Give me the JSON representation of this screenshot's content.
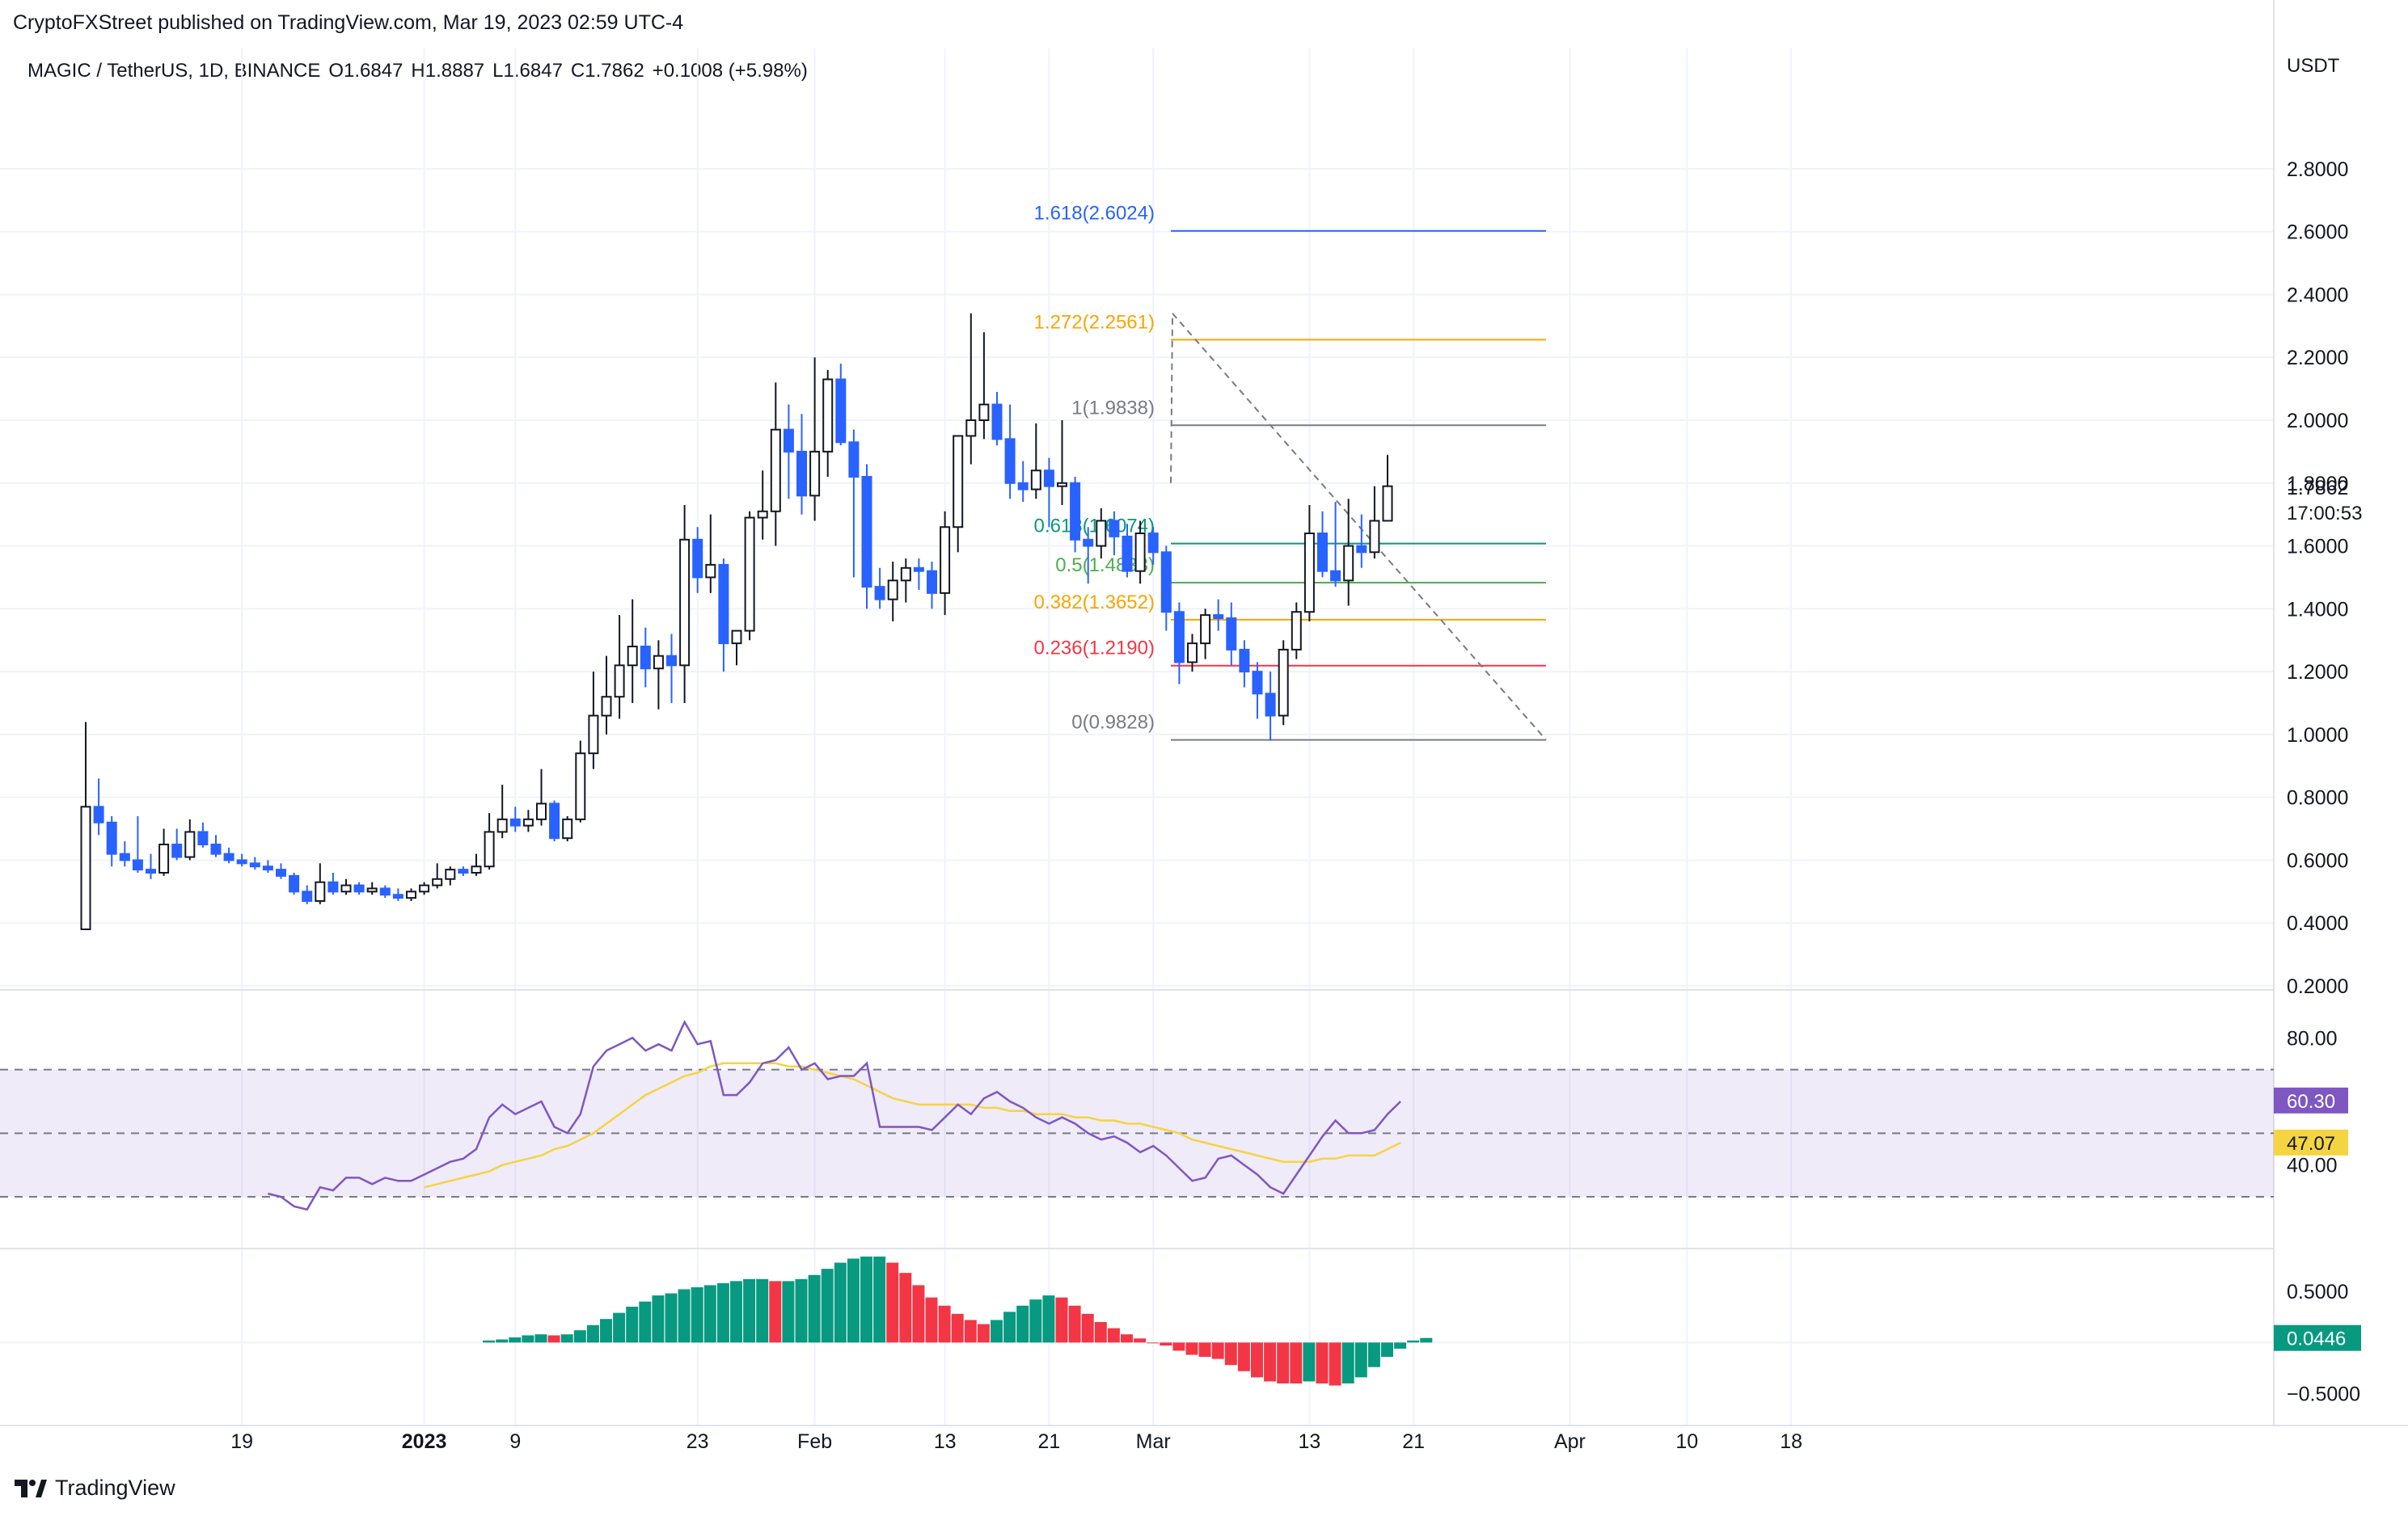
{
  "header": {
    "attribution": "CryptoFXStreet published on TradingView.com, Mar 19, 2023 02:59 UTC-4",
    "symbol": "MAGIC / TetherUS, 1D, BINANCE",
    "open": "O1.6847",
    "high": "H1.8887",
    "low": "L1.6847",
    "close": "C1.7862",
    "change": "+0.1008 (+5.98%)"
  },
  "footer": {
    "brand": "TradingView",
    "logo_icon": "tradingview-logo-icon"
  },
  "colors": {
    "up": "#ffffff",
    "down": "#2962ff",
    "wick": "#131722",
    "rsi": "#7e57c2",
    "rsi_ma": "#f5d442",
    "hist_up": "#089981",
    "hist_down": "#f23645",
    "grid": "#f0f3fa"
  },
  "chart_data": [
    {
      "type": "candlestick",
      "currency": "USDT",
      "ylim": [
        0.2,
        2.9
      ],
      "y_ticks": [
        "2.8000",
        "2.6000",
        "2.4000",
        "2.2000",
        "2.0000",
        "1.8000",
        "1.6000",
        "1.4000",
        "1.2000",
        "1.0000",
        "0.8000",
        "0.6000",
        "0.4000",
        "0.2000"
      ],
      "x_ticks": [
        "19",
        "2023",
        "9",
        "23",
        "Feb",
        "13",
        "21",
        "Mar",
        "13",
        "21",
        "Apr",
        "10",
        "18"
      ],
      "last_price": "1.7862",
      "countdown": "17:00:53",
      "candles": [
        [
          0.38,
          1.04,
          0.38,
          0.77
        ],
        [
          0.77,
          0.86,
          0.68,
          0.72
        ],
        [
          0.72,
          0.74,
          0.58,
          0.62
        ],
        [
          0.62,
          0.66,
          0.58,
          0.6
        ],
        [
          0.6,
          0.74,
          0.56,
          0.57
        ],
        [
          0.57,
          0.62,
          0.54,
          0.56
        ],
        [
          0.56,
          0.7,
          0.55,
          0.65
        ],
        [
          0.65,
          0.7,
          0.6,
          0.61
        ],
        [
          0.61,
          0.73,
          0.6,
          0.69
        ],
        [
          0.69,
          0.72,
          0.64,
          0.65
        ],
        [
          0.65,
          0.68,
          0.61,
          0.62
        ],
        [
          0.62,
          0.64,
          0.59,
          0.6
        ],
        [
          0.6,
          0.62,
          0.58,
          0.59
        ],
        [
          0.59,
          0.61,
          0.57,
          0.58
        ],
        [
          0.58,
          0.6,
          0.56,
          0.57
        ],
        [
          0.57,
          0.59,
          0.54,
          0.55
        ],
        [
          0.55,
          0.56,
          0.49,
          0.5
        ],
        [
          0.5,
          0.52,
          0.46,
          0.47
        ],
        [
          0.47,
          0.59,
          0.46,
          0.53
        ],
        [
          0.53,
          0.56,
          0.49,
          0.5
        ],
        [
          0.5,
          0.54,
          0.49,
          0.52
        ],
        [
          0.52,
          0.53,
          0.49,
          0.5
        ],
        [
          0.5,
          0.53,
          0.49,
          0.51
        ],
        [
          0.51,
          0.52,
          0.48,
          0.49
        ],
        [
          0.49,
          0.51,
          0.47,
          0.48
        ],
        [
          0.48,
          0.51,
          0.47,
          0.5
        ],
        [
          0.5,
          0.53,
          0.49,
          0.52
        ],
        [
          0.52,
          0.59,
          0.51,
          0.54
        ],
        [
          0.54,
          0.58,
          0.52,
          0.57
        ],
        [
          0.57,
          0.58,
          0.55,
          0.56
        ],
        [
          0.56,
          0.62,
          0.55,
          0.58
        ],
        [
          0.58,
          0.75,
          0.57,
          0.69
        ],
        [
          0.69,
          0.84,
          0.67,
          0.73
        ],
        [
          0.73,
          0.77,
          0.69,
          0.71
        ],
        [
          0.71,
          0.76,
          0.69,
          0.73
        ],
        [
          0.73,
          0.89,
          0.71,
          0.78
        ],
        [
          0.78,
          0.79,
          0.66,
          0.67
        ],
        [
          0.67,
          0.74,
          0.66,
          0.73
        ],
        [
          0.73,
          0.98,
          0.72,
          0.94
        ],
        [
          0.94,
          1.2,
          0.89,
          1.06
        ],
        [
          1.06,
          1.25,
          1.0,
          1.12
        ],
        [
          1.12,
          1.38,
          1.05,
          1.22
        ],
        [
          1.22,
          1.43,
          1.1,
          1.28
        ],
        [
          1.28,
          1.34,
          1.15,
          1.21
        ],
        [
          1.21,
          1.3,
          1.08,
          1.25
        ],
        [
          1.25,
          1.32,
          1.1,
          1.22
        ],
        [
          1.22,
          1.73,
          1.1,
          1.62
        ],
        [
          1.62,
          1.66,
          1.45,
          1.5
        ],
        [
          1.5,
          1.7,
          1.45,
          1.54
        ],
        [
          1.54,
          1.56,
          1.2,
          1.29
        ],
        [
          1.29,
          1.32,
          1.22,
          1.33
        ],
        [
          1.33,
          1.71,
          1.3,
          1.69
        ],
        [
          1.69,
          1.84,
          1.62,
          1.71
        ],
        [
          1.71,
          2.12,
          1.6,
          1.97
        ],
        [
          1.97,
          2.05,
          1.75,
          1.9
        ],
        [
          1.9,
          2.02,
          1.7,
          1.76
        ],
        [
          1.76,
          2.2,
          1.68,
          1.9
        ],
        [
          1.9,
          2.16,
          1.82,
          2.13
        ],
        [
          2.13,
          2.18,
          1.92,
          1.93
        ],
        [
          1.93,
          1.97,
          1.5,
          1.82
        ],
        [
          1.82,
          1.86,
          1.4,
          1.47
        ],
        [
          1.47,
          1.53,
          1.4,
          1.43
        ],
        [
          1.43,
          1.55,
          1.36,
          1.49
        ],
        [
          1.49,
          1.56,
          1.42,
          1.53
        ],
        [
          1.53,
          1.56,
          1.46,
          1.52
        ],
        [
          1.52,
          1.55,
          1.4,
          1.45
        ],
        [
          1.45,
          1.71,
          1.38,
          1.66
        ],
        [
          1.66,
          1.95,
          1.58,
          1.95
        ],
        [
          1.95,
          2.34,
          1.86,
          2.0
        ],
        [
          2.0,
          2.28,
          1.94,
          2.05
        ],
        [
          2.05,
          2.09,
          1.92,
          1.94
        ],
        [
          1.94,
          2.05,
          1.75,
          1.8
        ],
        [
          1.8,
          1.87,
          1.74,
          1.78
        ],
        [
          1.78,
          1.99,
          1.75,
          1.84
        ],
        [
          1.84,
          1.88,
          1.66,
          1.79
        ],
        [
          1.79,
          2.0,
          1.73,
          1.8
        ],
        [
          1.8,
          1.82,
          1.58,
          1.62
        ],
        [
          1.62,
          1.66,
          1.48,
          1.6
        ],
        [
          1.6,
          1.72,
          1.56,
          1.68
        ],
        [
          1.68,
          1.71,
          1.57,
          1.63
        ],
        [
          1.63,
          1.67,
          1.5,
          1.52
        ],
        [
          1.52,
          1.68,
          1.48,
          1.64
        ],
        [
          1.64,
          1.66,
          1.54,
          1.58
        ],
        [
          1.58,
          1.6,
          1.33,
          1.39
        ],
        [
          1.39,
          1.42,
          1.16,
          1.23
        ],
        [
          1.23,
          1.32,
          1.2,
          1.29
        ],
        [
          1.29,
          1.4,
          1.24,
          1.38
        ],
        [
          1.38,
          1.43,
          1.33,
          1.37
        ],
        [
          1.37,
          1.42,
          1.22,
          1.27
        ],
        [
          1.27,
          1.3,
          1.15,
          1.2
        ],
        [
          1.2,
          1.23,
          1.05,
          1.13
        ],
        [
          1.13,
          1.2,
          0.98,
          1.06
        ],
        [
          1.06,
          1.3,
          1.03,
          1.27
        ],
        [
          1.27,
          1.42,
          1.24,
          1.39
        ],
        [
          1.39,
          1.73,
          1.36,
          1.64
        ],
        [
          1.64,
          1.71,
          1.5,
          1.52
        ],
        [
          1.52,
          1.74,
          1.47,
          1.49
        ],
        [
          1.49,
          1.75,
          1.41,
          1.6
        ],
        [
          1.6,
          1.7,
          1.53,
          1.58
        ],
        [
          1.58,
          1.79,
          1.56,
          1.68
        ],
        [
          1.68,
          1.89,
          1.68,
          1.79
        ]
      ],
      "fibonacci": [
        {
          "label": "1.618(2.6024)",
          "value": 2.6024,
          "color": "#2962ff"
        },
        {
          "label": "1.272(2.2561)",
          "value": 2.2561,
          "color": "#f7a600"
        },
        {
          "label": "1(1.9838)",
          "value": 1.9838,
          "color": "#787b86"
        },
        {
          "label": "0.618(1.6074)",
          "value": 1.6074,
          "color": "#089981"
        },
        {
          "label": "0.5(1.4833)",
          "value": 1.4833,
          "color": "#4caf50"
        },
        {
          "label": "0.382(1.3652)",
          "value": 1.3652,
          "color": "#f7a600"
        },
        {
          "label": "0.236(1.2190)",
          "value": 1.219,
          "color": "#f23645"
        },
        {
          "label": "0(0.9828)",
          "value": 0.9828,
          "color": "#787b86"
        }
      ]
    },
    {
      "type": "line",
      "name": "RSI",
      "ylim": [
        15,
        90
      ],
      "y_ticks": [
        "80.00",
        "40.00"
      ],
      "bands": [
        70,
        50,
        30
      ],
      "rsi_label": "60.30",
      "rsi_ma_label": "47.07",
      "rsi": [
        null,
        null,
        null,
        null,
        null,
        null,
        null,
        null,
        null,
        null,
        null,
        null,
        null,
        null,
        31,
        30,
        27,
        26,
        33,
        32,
        36,
        36,
        34,
        36,
        35,
        35,
        37,
        39,
        41,
        42,
        45,
        55,
        59,
        56,
        58,
        60,
        52,
        50,
        56,
        71,
        76,
        78,
        80,
        76,
        78,
        76,
        85,
        78,
        79,
        62,
        62,
        66,
        72,
        73,
        77,
        70,
        72,
        67,
        68,
        68,
        72,
        52,
        52,
        52,
        52,
        51,
        55,
        59,
        56,
        61,
        63,
        60,
        58,
        55,
        53,
        55,
        53,
        50,
        48,
        49,
        47,
        44,
        46,
        43,
        39,
        35,
        36,
        42,
        43,
        40,
        37,
        33,
        31,
        37,
        43,
        49,
        54,
        50,
        50,
        51,
        56,
        60
      ],
      "rsi_ma": [
        null,
        null,
        null,
        null,
        null,
        null,
        null,
        null,
        null,
        null,
        null,
        null,
        null,
        null,
        null,
        null,
        null,
        null,
        null,
        null,
        null,
        null,
        null,
        null,
        null,
        null,
        33,
        34,
        35,
        36,
        37,
        38,
        40,
        41,
        42,
        43,
        45,
        46,
        48,
        50,
        53,
        56,
        59,
        62,
        64,
        66,
        68,
        69,
        71,
        72,
        72,
        72,
        72,
        72,
        71,
        71,
        70,
        69,
        68,
        67,
        65,
        63,
        61,
        60,
        59,
        59,
        59,
        59,
        59,
        58,
        58,
        57,
        57,
        56,
        56,
        56,
        55,
        55,
        54,
        54,
        53,
        53,
        52,
        51,
        50,
        48,
        47,
        46,
        45,
        44,
        43,
        42,
        41,
        41,
        41,
        42,
        42,
        43,
        43,
        43,
        45,
        47
      ]
    },
    {
      "type": "bar",
      "name": "Histogram",
      "ylim": [
        -0.7,
        0.8
      ],
      "y_ticks": [
        "0.5000",
        "−0.5000"
      ],
      "last_label": "0.0446",
      "values": [
        null,
        null,
        null,
        null,
        null,
        null,
        null,
        null,
        null,
        null,
        null,
        null,
        null,
        null,
        null,
        null,
        null,
        null,
        null,
        null,
        null,
        null,
        null,
        null,
        null,
        null,
        null,
        null,
        null,
        null,
        null,
        0.02,
        0.03,
        0.05,
        0.07,
        0.08,
        0.07,
        0.08,
        0.12,
        0.17,
        0.23,
        0.29,
        0.35,
        0.4,
        0.46,
        0.48,
        0.52,
        0.54,
        0.56,
        0.58,
        0.6,
        0.62,
        0.62,
        0.6,
        0.6,
        0.62,
        0.66,
        0.72,
        0.78,
        0.82,
        0.84,
        0.84,
        0.78,
        0.68,
        0.56,
        0.44,
        0.36,
        0.28,
        0.22,
        0.18,
        0.22,
        0.3,
        0.36,
        0.42,
        0.46,
        0.44,
        0.36,
        0.28,
        0.2,
        0.14,
        0.08,
        0.04,
        0.0,
        -0.03,
        -0.08,
        -0.12,
        -0.14,
        -0.16,
        -0.22,
        -0.28,
        -0.34,
        -0.38,
        -0.4,
        -0.4,
        -0.38,
        -0.4,
        -0.42,
        -0.4,
        -0.34,
        -0.24,
        -0.14,
        -0.06,
        0.02,
        0.0446
      ]
    }
  ]
}
